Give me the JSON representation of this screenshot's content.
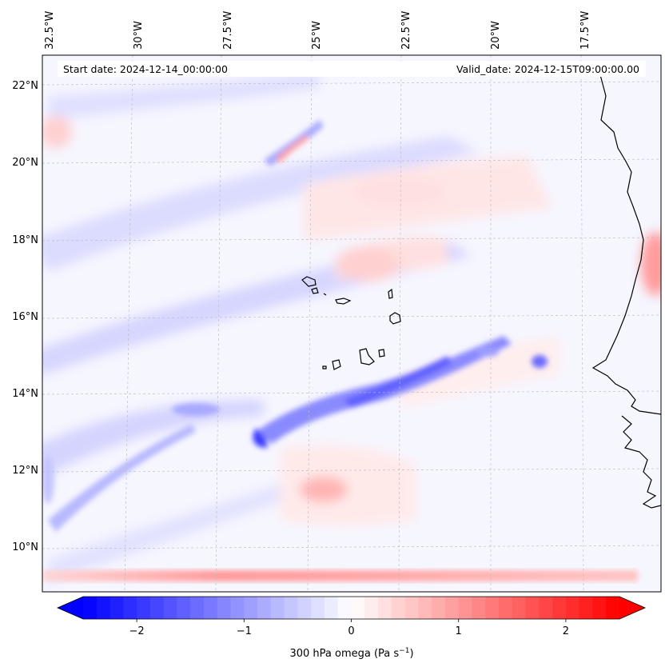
{
  "header": {
    "start_date": "Start date: 2024-12-14_00:00:00",
    "valid_date": "Valid_date: 2024-12-15T09:00:00.00"
  },
  "map": {
    "lon_ticks": [
      "32.5°W",
      "30°W",
      "27.5°W",
      "25°W",
      "22.5°W",
      "20°W",
      "17.5°W"
    ],
    "lat_ticks": [
      "22°N",
      "20°N",
      "18°N",
      "16°N",
      "14°N",
      "12°N",
      "10°N"
    ],
    "extent": {
      "lon": [
        -32.5,
        -15.0
      ],
      "lat": [
        8.8,
        22.8
      ]
    }
  },
  "colorbar": {
    "label": "300 hPa omega (Pa s",
    "label_sup": "−1",
    "label_close": ")",
    "ticks": [
      "−2",
      "−1",
      "0",
      "1",
      "2"
    ],
    "tick_values": [
      -2,
      -1,
      0,
      1,
      2
    ],
    "range": [
      -2.5,
      2.5
    ],
    "colors": {
      "negative": "#0000ff",
      "zero": "#ffffff",
      "positive": "#ff0000"
    }
  }
}
